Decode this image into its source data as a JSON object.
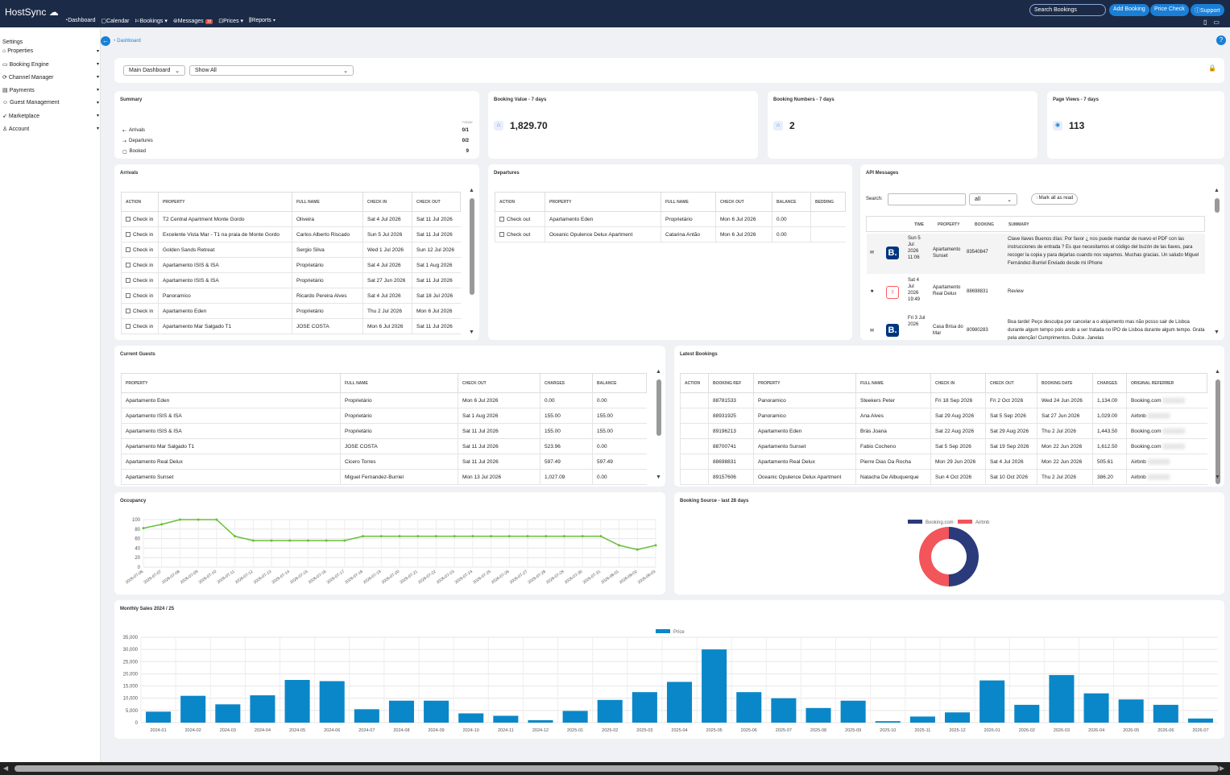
{
  "app": {
    "brand": "HostSync"
  },
  "topnav": [
    {
      "label": "Dashboard",
      "icon": "dashboard-icon"
    },
    {
      "label": "Calendar",
      "icon": "calendar-icon"
    },
    {
      "label": "Bookings",
      "icon": "bookings-icon"
    },
    {
      "label": "Messages",
      "icon": "messages-icon",
      "badge": "10"
    },
    {
      "label": "Prices",
      "icon": "prices-icon"
    },
    {
      "label": "Reports",
      "icon": "reports-icon"
    }
  ],
  "top_actions": {
    "search_placeholder": "Search Bookings",
    "add_booking": "Add Booking",
    "price_check": "Price Check",
    "support": "Support"
  },
  "sidebar": {
    "title": "Settings",
    "items": [
      "Properties",
      "Booking Engine",
      "Channel Manager",
      "Payments",
      "Guest Management",
      "Marketplace",
      "Account"
    ]
  },
  "breadcrumb": "Dashboard",
  "filters": {
    "dashboard": "Main Dashboard",
    "show": "Show All"
  },
  "summary": {
    "title": "Summary",
    "header": "TODAY",
    "rows": [
      {
        "label": "Arrivals",
        "value": "0/1"
      },
      {
        "label": "Departures",
        "value": "0/2"
      },
      {
        "label": "Booked",
        "value": "9"
      }
    ]
  },
  "stats": [
    {
      "title": "Booking Value - 7 days",
      "value": "1,829.70"
    },
    {
      "title": "Booking Numbers - 7 days",
      "value": "2"
    },
    {
      "title": "Page Views - 7 days",
      "value": "113"
    }
  ],
  "arrivals": {
    "title": "Arrivals",
    "columns": [
      "ACTION",
      "PROPERTY",
      "FULL NAME",
      "CHECK IN",
      "CHECK OUT"
    ],
    "rows": [
      [
        "Check in",
        "T2 Central Apartment Monte Gordo",
        "Oliveira",
        "Sat 4 Jul 2026",
        "Sat 11 Jul 2026"
      ],
      [
        "Check in",
        "Excelente Vista Mar - T1 na praia de Monte Gordo",
        "Carlos Alberto Riscado",
        "Sun 5 Jul 2026",
        "Sat 11 Jul 2026"
      ],
      [
        "Check in",
        "Golden Sands Retreat",
        "Sergio Silva",
        "Wed 1 Jul 2026",
        "Sun 12 Jul 2026"
      ],
      [
        "Check in",
        "Apartamento ISIS & ISA",
        "Proprietário",
        "Sat 4 Jul 2026",
        "Sat 1 Aug 2026"
      ],
      [
        "Check in",
        "Apartamento ISIS & ISA",
        "Proprietário",
        "Sat 27 Jun 2026",
        "Sat 11 Jul 2026"
      ],
      [
        "Check in",
        "Panoramico",
        "Ricardo Pereira Alves",
        "Sat 4 Jul 2026",
        "Sat 18 Jul 2026"
      ],
      [
        "Check in",
        "Apartamento Eden",
        "Proprietário",
        "Thu 2 Jul 2026",
        "Mon 6 Jul 2026"
      ],
      [
        "Check in",
        "Apartamento Mar Salgado T1",
        "JOSE COSTA",
        "Mon 6 Jul 2026",
        "Sat 11 Jul 2026"
      ]
    ]
  },
  "departures": {
    "title": "Departures",
    "columns": [
      "ACTION",
      "PROPERTY",
      "FULL NAME",
      "CHECK OUT",
      "BALANCE",
      "BEDDING"
    ],
    "rows": [
      [
        "Check out",
        "Apartamento Eden",
        "Proprietário",
        "Mon 6 Jul 2026",
        "0.00",
        ""
      ],
      [
        "Check out",
        "Oceanic Opulence Delux Apartment",
        "Catarina Antão",
        "Mon 6 Jul 2026",
        "0.00",
        ""
      ]
    ]
  },
  "api_messages": {
    "title": "API Messages",
    "search_label": "Search:",
    "filter": "all",
    "mark_read": "Mark all as read",
    "columns": [
      "TIME",
      "PROPERTY",
      "BOOKING",
      "SUMMARY"
    ],
    "rows": [
      {
        "icon": "booking-com-icon",
        "time": "Sun 5 Jul 2026 11:06",
        "property": "Apartamento Sunset",
        "booking": "83540847",
        "summary": "Clave llaves Buenos días: Por favor ¿ nos puede mandar de nuevo el PDF con las instrucciones de entrada ? Es que necesitamos el código del buzón de las llaves, para recoger la copia y para dejarlas cuando nos vayamos. Muchas gracias. Un saludo Miguel Fernández-Burriel Enviado desde mi iPhone"
      },
      {
        "icon": "airbnb-icon",
        "time": "Sat 4 Jul 2026 19:49",
        "property": "Apartamento Real Delux",
        "booking": "88698831",
        "summary": "Review"
      },
      {
        "icon": "booking-com-icon",
        "time": "Fri 3 Jul 2026",
        "property": "Casa Brisa do Mar",
        "booking": "80980283",
        "summary": "Boa tarde! Peço desculpa por cancelar a o alojamento mas não posso sair de Lisboa durante algum tempo pois ando a ser tratada no IPO de Lisboa durante algum tempo. Grata pela atenção! Cumprimentos. Dulce. Janelas"
      }
    ]
  },
  "current_guests": {
    "title": "Current Guests",
    "columns": [
      "PROPERTY",
      "FULL NAME",
      "CHECK OUT",
      "CHARGES",
      "BALANCE"
    ],
    "rows": [
      [
        "Apartamento Eden",
        "Proprietário",
        "Mon 6 Jul 2026",
        "0.00",
        "0.00"
      ],
      [
        "Apartamento ISIS & ISA",
        "Proprietário",
        "Sat 1 Aug 2026",
        "155.00",
        "155.00"
      ],
      [
        "Apartamento ISIS & ISA",
        "Proprietário",
        "Sat 11 Jul 2026",
        "155.00",
        "155.00"
      ],
      [
        "Apartamento Mar Salgado T1",
        "JOSE COSTA",
        "Sat 11 Jul 2026",
        "523.96",
        "0.00"
      ],
      [
        "Apartamento Real Delux",
        "Cicero Torres",
        "Sat 11 Jul 2026",
        "597.49",
        "597.49"
      ],
      [
        "Apartamento Sunset",
        "Miguel Fernandez-Burriel",
        "Mon 13 Jul 2026",
        "1,027.09",
        "0.00"
      ]
    ]
  },
  "latest_bookings": {
    "title": "Latest Bookings",
    "columns": [
      "ACTION",
      "BOOKING REF",
      "PROPERTY",
      "FULL NAME",
      "CHECK IN",
      "CHECK OUT",
      "BOOKING DATE",
      "CHARGES",
      "ORIGINAL REFERRER"
    ],
    "rows": [
      [
        "",
        "88781533",
        "Panoramico",
        "Steekers Peter",
        "Fri 18 Sep 2026",
        "Fri 2 Oct 2026",
        "Wed 24 Jun 2026",
        "1,134.00",
        "Booking.com"
      ],
      [
        "",
        "88931925",
        "Panoramico",
        "Ana Alves",
        "Sat 29 Aug 2026",
        "Sat 5 Sep 2026",
        "Sat 27 Jun 2026",
        "1,029.00",
        "Airbnb"
      ],
      [
        "",
        "89196213",
        "Apartamento Eden",
        "Brás Joana",
        "Sat 22 Aug 2026",
        "Sat 29 Aug 2026",
        "Thu 2 Jul 2026",
        "1,443.50",
        "Booking.com"
      ],
      [
        "",
        "88700741",
        "Apartamento Sunset",
        "Fabio Cocheno",
        "Sat 5 Sep 2026",
        "Sat 19 Sep 2026",
        "Mon 22 Jun 2026",
        "1,612.50",
        "Booking.com"
      ],
      [
        "",
        "88698831",
        "Apartamento Real Delux",
        "Pierre Dias Da Rocha",
        "Mon 29 Jun 2026",
        "Sat 4 Jul 2026",
        "Mon 22 Jun 2026",
        "505.61",
        "Airbnb"
      ],
      [
        "",
        "89157606",
        "Oceanic Opulence Delux Apartment",
        "Natacha De Albuquerque",
        "Sun 4 Oct 2026",
        "Sat 10 Oct 2026",
        "Thu 2 Jul 2026",
        "386.20",
        "Airbnb"
      ]
    ]
  },
  "occupancy": {
    "title": "Occupancy"
  },
  "booking_source": {
    "title": "Booking Source - last 28 days"
  },
  "monthly_sales": {
    "title": "Monthly Sales 2024 / 25"
  },
  "colors": {
    "primary": "#1a7fd6",
    "nav": "#1b2b47",
    "booking": "#2a3a7a",
    "airbnb": "#f2555a",
    "occupancy": "#6abf3a",
    "bar": "#0a87c9"
  },
  "chart_data": [
    {
      "type": "line",
      "title": "Occupancy",
      "x": [
        "2026-07-06",
        "2026-07-07",
        "2026-07-08",
        "2026-07-09",
        "2026-07-10",
        "2026-07-11",
        "2026-07-12",
        "2026-07-13",
        "2026-07-14",
        "2026-07-15",
        "2026-07-16",
        "2026-07-17",
        "2026-07-18",
        "2026-07-19",
        "2026-07-20",
        "2026-07-21",
        "2026-07-22",
        "2026-07-23",
        "2026-07-24",
        "2026-07-25",
        "2026-07-26",
        "2026-07-27",
        "2026-07-28",
        "2026-07-29",
        "2026-07-30",
        "2026-07-31",
        "2026-08-01",
        "2026-08-02",
        "2026-08-03"
      ],
      "values": [
        82,
        90,
        100,
        100,
        100,
        65,
        56,
        56,
        56,
        56,
        56,
        56,
        65,
        65,
        65,
        65,
        65,
        65,
        65,
        65,
        65,
        65,
        65,
        65,
        65,
        65,
        46,
        37,
        46
      ],
      "ylim": [
        0,
        100
      ],
      "yticks": [
        0,
        20,
        40,
        60,
        80,
        100
      ],
      "grid": true
    },
    {
      "type": "pie",
      "title": "Booking Source - last 28 days",
      "series": [
        {
          "name": "Booking.com",
          "value": 50
        },
        {
          "name": "Airbnb",
          "value": 50
        }
      ],
      "legend": "top"
    },
    {
      "type": "bar",
      "title": "Monthly Sales 2024 / 25",
      "series": [
        {
          "name": "Price",
          "values": [
            4500,
            11000,
            7500,
            11200,
            17500,
            17000,
            5500,
            9000,
            9000,
            3800,
            2800,
            1000,
            4800,
            9300,
            12500,
            16700,
            30000,
            12500,
            10000,
            6000,
            9000,
            600,
            2500,
            4200,
            17300,
            7300,
            19500,
            12000,
            9500,
            7300,
            1700
          ]
        }
      ],
      "categories": [
        "2024-01",
        "2024-02",
        "2024-03",
        "2024-04",
        "2024-05",
        "2024-06",
        "2024-07",
        "2024-08",
        "2024-09",
        "2024-10",
        "2024-11",
        "2024-12",
        "2025-01",
        "2025-02",
        "2025-03",
        "2025-04",
        "2025-05",
        "2025-06",
        "2025-07",
        "2025-08",
        "2025-09",
        "2025-10",
        "2025-11",
        "2025-12",
        "2026-01",
        "2026-02",
        "2026-03",
        "2026-04",
        "2026-05",
        "2026-06",
        "2026-07"
      ],
      "ylim": [
        0,
        35000
      ],
      "yticks": [
        0,
        5000,
        10000,
        15000,
        20000,
        25000,
        30000,
        35000
      ],
      "yticklabels": [
        "0",
        "5,000",
        "10,000",
        "15,000",
        "20,000",
        "25,000",
        "30,000",
        "35,000"
      ],
      "legend": "top"
    }
  ]
}
